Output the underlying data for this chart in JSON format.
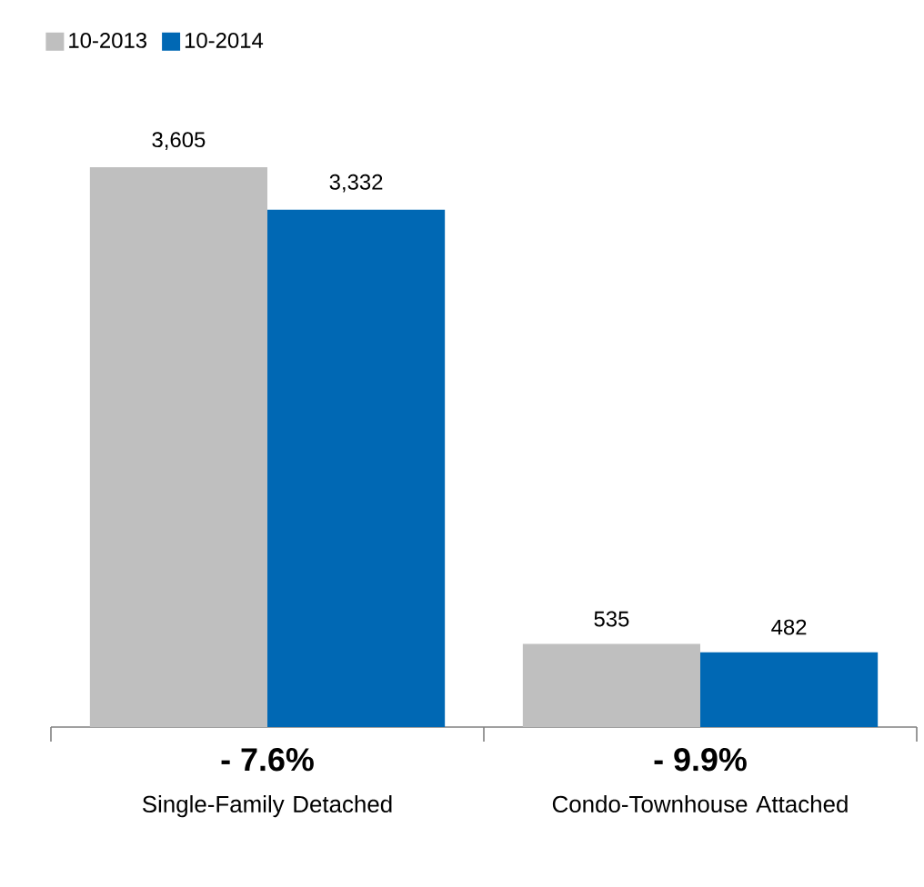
{
  "chart_data": {
    "type": "bar",
    "categories": [
      "Single-Family Detached",
      "Condo-Townhouse Attached"
    ],
    "series": [
      {
        "name": "10-2013",
        "color": "#bfbfbf",
        "values": [
          3605,
          535
        ],
        "value_labels": [
          "3,605",
          "535"
        ]
      },
      {
        "name": "10-2014",
        "color": "#0068b4",
        "values": [
          3332,
          482
        ],
        "value_labels": [
          "3,332",
          "482"
        ]
      }
    ],
    "annotations": [
      "**- 7.6%**",
      "**- 9.9%**"
    ],
    "legend": "top left"
  }
}
